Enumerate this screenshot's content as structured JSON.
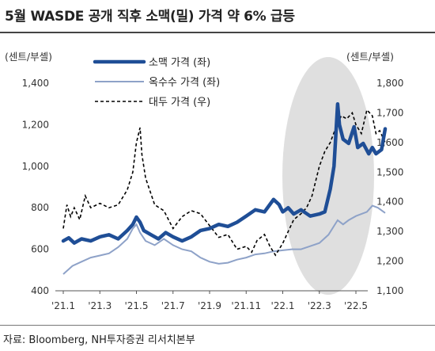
{
  "title": "5월 WASDE 공개 직후 소맥(밀) 가격 약 6% 급등",
  "source": "자료: Bloomberg, NH투자증권 리서치본부",
  "colors": {
    "wheat": "#1f4e96",
    "corn": "#8ea2c8",
    "soy": "#000000",
    "highlight": "#d9d9d9"
  },
  "chart_data": {
    "type": "line",
    "y_left_label": "(센트/부셸)",
    "y_right_label": "(센트/부셸)",
    "y_left_range": [
      400,
      1400
    ],
    "y_right_range": [
      1100,
      1800
    ],
    "y_left_ticks": [
      "400",
      "600",
      "800",
      "1,000",
      "1,200",
      "1,400"
    ],
    "y_right_ticks": [
      "1,100",
      "1,200",
      "1,300",
      "1,400",
      "1,500",
      "1,600",
      "1,700",
      "1,800"
    ],
    "x_ticks": [
      "'21.1",
      "'21.3",
      "'21.5",
      "'21.7",
      "'21.9",
      "'21.11",
      "'22.1",
      "'22.3",
      "'22.5"
    ],
    "series": [
      {
        "name": "소맥 가격 (좌)",
        "axis": "left",
        "style": "thick",
        "points": [
          [
            0,
            640
          ],
          [
            0.3,
            655
          ],
          [
            0.6,
            630
          ],
          [
            1.0,
            650
          ],
          [
            1.5,
            640
          ],
          [
            2.0,
            660
          ],
          [
            2.5,
            670
          ],
          [
            3.0,
            650
          ],
          [
            3.5,
            690
          ],
          [
            3.8,
            720
          ],
          [
            4.0,
            755
          ],
          [
            4.2,
            730
          ],
          [
            4.4,
            690
          ],
          [
            4.8,
            670
          ],
          [
            5.2,
            650
          ],
          [
            5.6,
            680
          ],
          [
            6.0,
            660
          ],
          [
            6.5,
            640
          ],
          [
            7.0,
            660
          ],
          [
            7.5,
            690
          ],
          [
            8.0,
            700
          ],
          [
            8.5,
            720
          ],
          [
            9.0,
            710
          ],
          [
            9.5,
            730
          ],
          [
            10.0,
            760
          ],
          [
            10.5,
            790
          ],
          [
            11.0,
            780
          ],
          [
            11.5,
            840
          ],
          [
            11.8,
            815
          ],
          [
            12.0,
            780
          ],
          [
            12.3,
            800
          ],
          [
            12.6,
            770
          ],
          [
            13.0,
            790
          ],
          [
            13.5,
            760
          ],
          [
            14.0,
            770
          ],
          [
            14.3,
            780
          ],
          [
            14.6,
            890
          ],
          [
            14.8,
            1000
          ],
          [
            14.9,
            1150
          ],
          [
            15.0,
            1300
          ],
          [
            15.1,
            1200
          ],
          [
            15.3,
            1130
          ],
          [
            15.6,
            1110
          ],
          [
            15.9,
            1190
          ],
          [
            16.1,
            1090
          ],
          [
            16.4,
            1110
          ],
          [
            16.7,
            1060
          ],
          [
            16.9,
            1090
          ],
          [
            17.1,
            1060
          ],
          [
            17.4,
            1080
          ],
          [
            17.6,
            1180
          ]
        ]
      },
      {
        "name": "옥수수 가격 (좌)",
        "axis": "left",
        "style": "thin",
        "points": [
          [
            0,
            480
          ],
          [
            0.5,
            520
          ],
          [
            1.0,
            540
          ],
          [
            1.5,
            560
          ],
          [
            2.0,
            570
          ],
          [
            2.5,
            580
          ],
          [
            3.0,
            610
          ],
          [
            3.5,
            650
          ],
          [
            3.8,
            700
          ],
          [
            4.0,
            720
          ],
          [
            4.2,
            680
          ],
          [
            4.5,
            640
          ],
          [
            5.0,
            620
          ],
          [
            5.5,
            650
          ],
          [
            6.0,
            620
          ],
          [
            6.5,
            600
          ],
          [
            7.0,
            590
          ],
          [
            7.5,
            560
          ],
          [
            8.0,
            540
          ],
          [
            8.5,
            530
          ],
          [
            9.0,
            535
          ],
          [
            9.5,
            550
          ],
          [
            10.0,
            560
          ],
          [
            10.5,
            575
          ],
          [
            11.0,
            580
          ],
          [
            11.5,
            590
          ],
          [
            12.0,
            595
          ],
          [
            12.5,
            600
          ],
          [
            13.0,
            600
          ],
          [
            13.5,
            615
          ],
          [
            14.0,
            630
          ],
          [
            14.5,
            670
          ],
          [
            15.0,
            740
          ],
          [
            15.3,
            720
          ],
          [
            15.6,
            740
          ],
          [
            16.0,
            760
          ],
          [
            16.3,
            770
          ],
          [
            16.6,
            780
          ],
          [
            16.9,
            810
          ],
          [
            17.2,
            800
          ],
          [
            17.6,
            775
          ]
        ]
      },
      {
        "name": "대두 가격 (우)",
        "axis": "right",
        "style": "dashed",
        "points": [
          [
            0,
            1310
          ],
          [
            0.2,
            1390
          ],
          [
            0.4,
            1350
          ],
          [
            0.6,
            1380
          ],
          [
            0.9,
            1340
          ],
          [
            1.2,
            1420
          ],
          [
            1.5,
            1380
          ],
          [
            2.0,
            1395
          ],
          [
            2.5,
            1380
          ],
          [
            3.0,
            1390
          ],
          [
            3.5,
            1440
          ],
          [
            3.8,
            1500
          ],
          [
            4.0,
            1600
          ],
          [
            4.2,
            1650
          ],
          [
            4.3,
            1560
          ],
          [
            4.5,
            1480
          ],
          [
            5.0,
            1390
          ],
          [
            5.5,
            1370
          ],
          [
            6.0,
            1310
          ],
          [
            6.5,
            1350
          ],
          [
            7.0,
            1370
          ],
          [
            7.5,
            1360
          ],
          [
            8.0,
            1320
          ],
          [
            8.5,
            1280
          ],
          [
            9.0,
            1290
          ],
          [
            9.5,
            1240
          ],
          [
            10.0,
            1250
          ],
          [
            10.3,
            1230
          ],
          [
            10.6,
            1270
          ],
          [
            11.0,
            1290
          ],
          [
            11.3,
            1250
          ],
          [
            11.6,
            1220
          ],
          [
            12.0,
            1260
          ],
          [
            12.3,
            1300
          ],
          [
            12.6,
            1340
          ],
          [
            13.0,
            1360
          ],
          [
            13.3,
            1380
          ],
          [
            13.6,
            1420
          ],
          [
            14.0,
            1520
          ],
          [
            14.3,
            1570
          ],
          [
            14.6,
            1600
          ],
          [
            14.9,
            1650
          ],
          [
            15.2,
            1690
          ],
          [
            15.5,
            1680
          ],
          [
            15.8,
            1700
          ],
          [
            16.0,
            1660
          ],
          [
            16.3,
            1630
          ],
          [
            16.6,
            1710
          ],
          [
            16.9,
            1690
          ],
          [
            17.1,
            1630
          ],
          [
            17.3,
            1640
          ],
          [
            17.6,
            1600
          ]
        ]
      }
    ]
  }
}
